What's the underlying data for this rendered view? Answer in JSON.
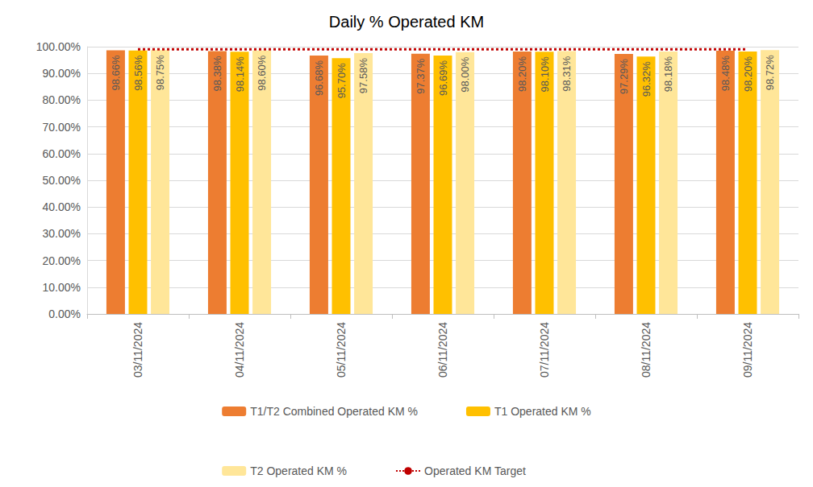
{
  "chart_data": {
    "type": "bar",
    "title": "Daily % Operated KM",
    "categories": [
      "03/11/2024",
      "04/11/2024",
      "05/11/2024",
      "06/11/2024",
      "07/11/2024",
      "08/11/2024",
      "09/11/2024"
    ],
    "series": [
      {
        "name": "T1/T2 Combined Operated KM %",
        "type": "bar",
        "color": "#ED7D31",
        "values": [
          98.66,
          98.38,
          96.68,
          97.37,
          98.2,
          97.29,
          98.48
        ],
        "value_labels": [
          "98.66%",
          "98.38%",
          "96.68%",
          "97.37%",
          "98.20%",
          "97.29%",
          "98.48%"
        ]
      },
      {
        "name": "T1 Operated KM %",
        "type": "bar",
        "color": "#FFC000",
        "values": [
          98.56,
          98.14,
          95.7,
          96.69,
          98.1,
          96.32,
          98.2
        ],
        "value_labels": [
          "98.56%",
          "98.14%",
          "95.70%",
          "96.69%",
          "98.10%",
          "96.32%",
          "98.20%"
        ]
      },
      {
        "name": "T2 Operated KM %",
        "type": "bar",
        "color": "#FFE699",
        "values": [
          98.75,
          98.6,
          97.58,
          98.0,
          98.31,
          98.18,
          98.72
        ],
        "value_labels": [
          "98.75%",
          "98.60%",
          "97.58%",
          "98.00%",
          "98.31%",
          "98.18%",
          "98.72%"
        ]
      },
      {
        "name": "Operated KM Target",
        "type": "line",
        "color": "#C00000",
        "line_style": "dotted",
        "marker": "none",
        "data_labels": false,
        "values": [
          99,
          99,
          99,
          99,
          99,
          99,
          99
        ]
      }
    ],
    "ylim": [
      0,
      100
    ],
    "yticks": [
      {
        "value": 0,
        "label": "0.00%"
      },
      {
        "value": 10,
        "label": "10.00%"
      },
      {
        "value": 20,
        "label": "20.00%"
      },
      {
        "value": 30,
        "label": "30.00%"
      },
      {
        "value": 40,
        "label": "40.00%"
      },
      {
        "value": 50,
        "label": "50.00%"
      },
      {
        "value": 60,
        "label": "60.00%"
      },
      {
        "value": 70,
        "label": "70.00%"
      },
      {
        "value": 80,
        "label": "80.00%"
      },
      {
        "value": 90,
        "label": "90.00%"
      },
      {
        "value": 100,
        "label": "100.00%"
      }
    ],
    "grid": true,
    "legend": "bottom",
    "data_labels": true
  }
}
